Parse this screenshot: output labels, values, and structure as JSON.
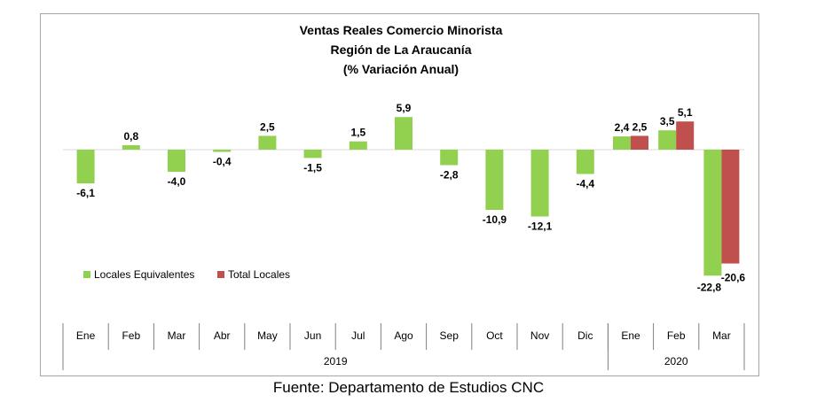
{
  "chart_data": {
    "type": "bar",
    "title_lines": [
      "Ventas Reales Comercio Minorista",
      "Región de La Araucanía",
      "(% Variación Anual)"
    ],
    "categories": [
      "Ene",
      "Feb",
      "Mar",
      "Abr",
      "May",
      "Jun",
      "Jul",
      "Ago",
      "Sep",
      "Oct",
      "Nov",
      "Dic",
      "Ene",
      "Feb",
      "Mar"
    ],
    "groups": [
      {
        "label": "2019",
        "start": 0,
        "end": 11
      },
      {
        "label": "2020",
        "start": 12,
        "end": 14
      }
    ],
    "series": [
      {
        "name": "Locales Equivalentes",
        "color": "#92d050",
        "values": [
          -6.1,
          0.8,
          -4.0,
          -0.4,
          2.5,
          -1.5,
          1.5,
          5.9,
          -2.8,
          -10.9,
          -12.1,
          -4.4,
          2.4,
          3.5,
          -22.8
        ],
        "labels": [
          "-6,1",
          "0,8",
          "-4,0",
          "-0,4",
          "2,5",
          "-1,5",
          "1,5",
          "5,9",
          "-2,8",
          "-10,9",
          "-12,1",
          "-4,4",
          "2,4",
          "3,5",
          "-22,8"
        ]
      },
      {
        "name": "Total Locales",
        "color": "#c0504d",
        "values": [
          null,
          null,
          null,
          null,
          null,
          null,
          null,
          null,
          null,
          null,
          null,
          null,
          2.5,
          5.1,
          -20.6
        ],
        "labels": [
          "",
          "",
          "",
          "",
          "",
          "",
          "",
          "",
          "",
          "",
          "",
          "",
          "2,5",
          "5,1",
          "-20,6"
        ]
      }
    ],
    "xlabel": "",
    "ylabel": "",
    "y_axis_visible": false,
    "legend_position": "bottom-left",
    "grid": false
  },
  "footer": {
    "source": "Fuente: Departamento de Estudios CNC"
  }
}
